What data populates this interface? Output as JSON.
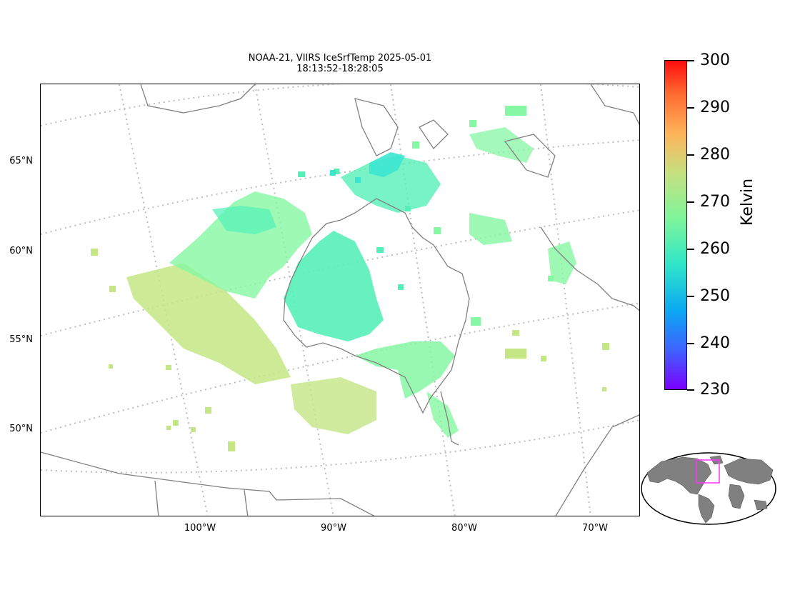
{
  "title": {
    "line1": "NOAA-21, VIIRS IceSrfTemp 2025-05-01",
    "line2": "18:13:52-18:28:05"
  },
  "map": {
    "lat_labels": [
      "65°N",
      "60°N",
      "55°N",
      "50°N"
    ],
    "lon_labels": [
      "100°W",
      "90°W",
      "80°W",
      "70°W"
    ],
    "gridline_color": "#bdbdbd",
    "coastline_color": "#808080"
  },
  "colorbar": {
    "label": "Kelvin",
    "ticks": [
      "300",
      "290",
      "280",
      "270",
      "260",
      "250",
      "240",
      "230"
    ],
    "min": 230,
    "max": 300,
    "colormap": "rainbow"
  },
  "inset": {
    "land_color": "#808080",
    "box_color": "#ff33ff"
  }
}
